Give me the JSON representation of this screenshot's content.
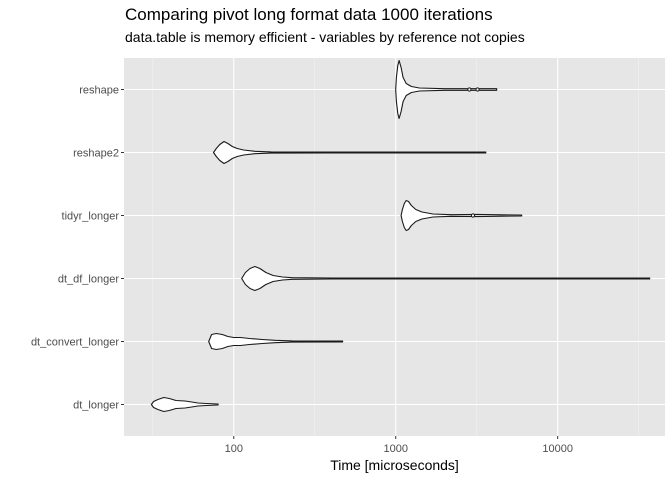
{
  "chart_data": {
    "type": "violin",
    "title": "Comparing pivot long format data 1000 iterations",
    "subtitle": "data.table is memory efficient - variables by reference not copies",
    "xlabel": "Time [microseconds]",
    "ylabel": "",
    "x_scale": "log10",
    "xlim": [
      21,
      46000
    ],
    "x_ticks": [
      100,
      1000,
      10000
    ],
    "x_tick_labels": [
      "100",
      "1000",
      "10000"
    ],
    "grid": true,
    "categories": [
      "reshape",
      "reshape2",
      "tidyr_longer",
      "dt_df_longer",
      "dt_convert_longer",
      "dt_longer"
    ],
    "series": [
      {
        "name": "reshape",
        "min": 1000,
        "max": 4200,
        "outliers": [
          2850,
          3200
        ],
        "profile": [
          [
            1000,
            0
          ],
          [
            1010,
            12
          ],
          [
            1030,
            24
          ],
          [
            1050,
            29
          ],
          [
            1080,
            22
          ],
          [
            1110,
            12
          ],
          [
            1160,
            6
          ],
          [
            1250,
            3
          ],
          [
            1400,
            1.5
          ],
          [
            2000,
            0.8
          ],
          [
            3000,
            0.8
          ],
          [
            4200,
            0.8
          ]
        ]
      },
      {
        "name": "reshape2",
        "min": 75,
        "max": 3600,
        "profile": [
          [
            75,
            0
          ],
          [
            78,
            4
          ],
          [
            82,
            8
          ],
          [
            87,
            11
          ],
          [
            92,
            9
          ],
          [
            98,
            6
          ],
          [
            105,
            4
          ],
          [
            115,
            2.5
          ],
          [
            135,
            1.2
          ],
          [
            170,
            0.6
          ],
          [
            400,
            0.5
          ],
          [
            3600,
            0.5
          ]
        ]
      },
      {
        "name": "tidyr_longer",
        "min": 1080,
        "max": 6000,
        "outliers": [
          3000
        ],
        "profile": [
          [
            1080,
            0
          ],
          [
            1100,
            6
          ],
          [
            1130,
            12
          ],
          [
            1160,
            15
          ],
          [
            1200,
            14
          ],
          [
            1250,
            10
          ],
          [
            1330,
            6
          ],
          [
            1450,
            3.5
          ],
          [
            1700,
            1.5
          ],
          [
            2200,
            0.8
          ],
          [
            3200,
            1.1
          ],
          [
            4500,
            0.7
          ],
          [
            6000,
            0.5
          ]
        ]
      },
      {
        "name": "dt_df_longer",
        "min": 112,
        "max": 37000,
        "profile": [
          [
            112,
            0
          ],
          [
            118,
            6
          ],
          [
            126,
            10
          ],
          [
            135,
            12
          ],
          [
            145,
            10
          ],
          [
            158,
            6
          ],
          [
            175,
            3
          ],
          [
            200,
            1.5
          ],
          [
            230,
            0.8
          ],
          [
            400,
            0.5
          ],
          [
            37000,
            0.5
          ]
        ]
      },
      {
        "name": "dt_convert_longer",
        "min": 70,
        "max": 470,
        "profile": [
          [
            70,
            0
          ],
          [
            73,
            7
          ],
          [
            78,
            8
          ],
          [
            85,
            7
          ],
          [
            92,
            5
          ],
          [
            100,
            4
          ],
          [
            110,
            4
          ],
          [
            125,
            3
          ],
          [
            150,
            2
          ],
          [
            180,
            1.2
          ],
          [
            230,
            0.6
          ],
          [
            470,
            0.5
          ]
        ]
      },
      {
        "name": "dt_longer",
        "min": 31,
        "max": 80,
        "profile": [
          [
            31,
            0
          ],
          [
            32,
            3
          ],
          [
            34,
            5
          ],
          [
            37,
            7
          ],
          [
            40,
            6
          ],
          [
            44,
            4
          ],
          [
            50,
            3.5
          ],
          [
            55,
            2.5
          ],
          [
            60,
            1.5
          ],
          [
            68,
            1
          ],
          [
            80,
            0.5
          ]
        ]
      }
    ]
  }
}
